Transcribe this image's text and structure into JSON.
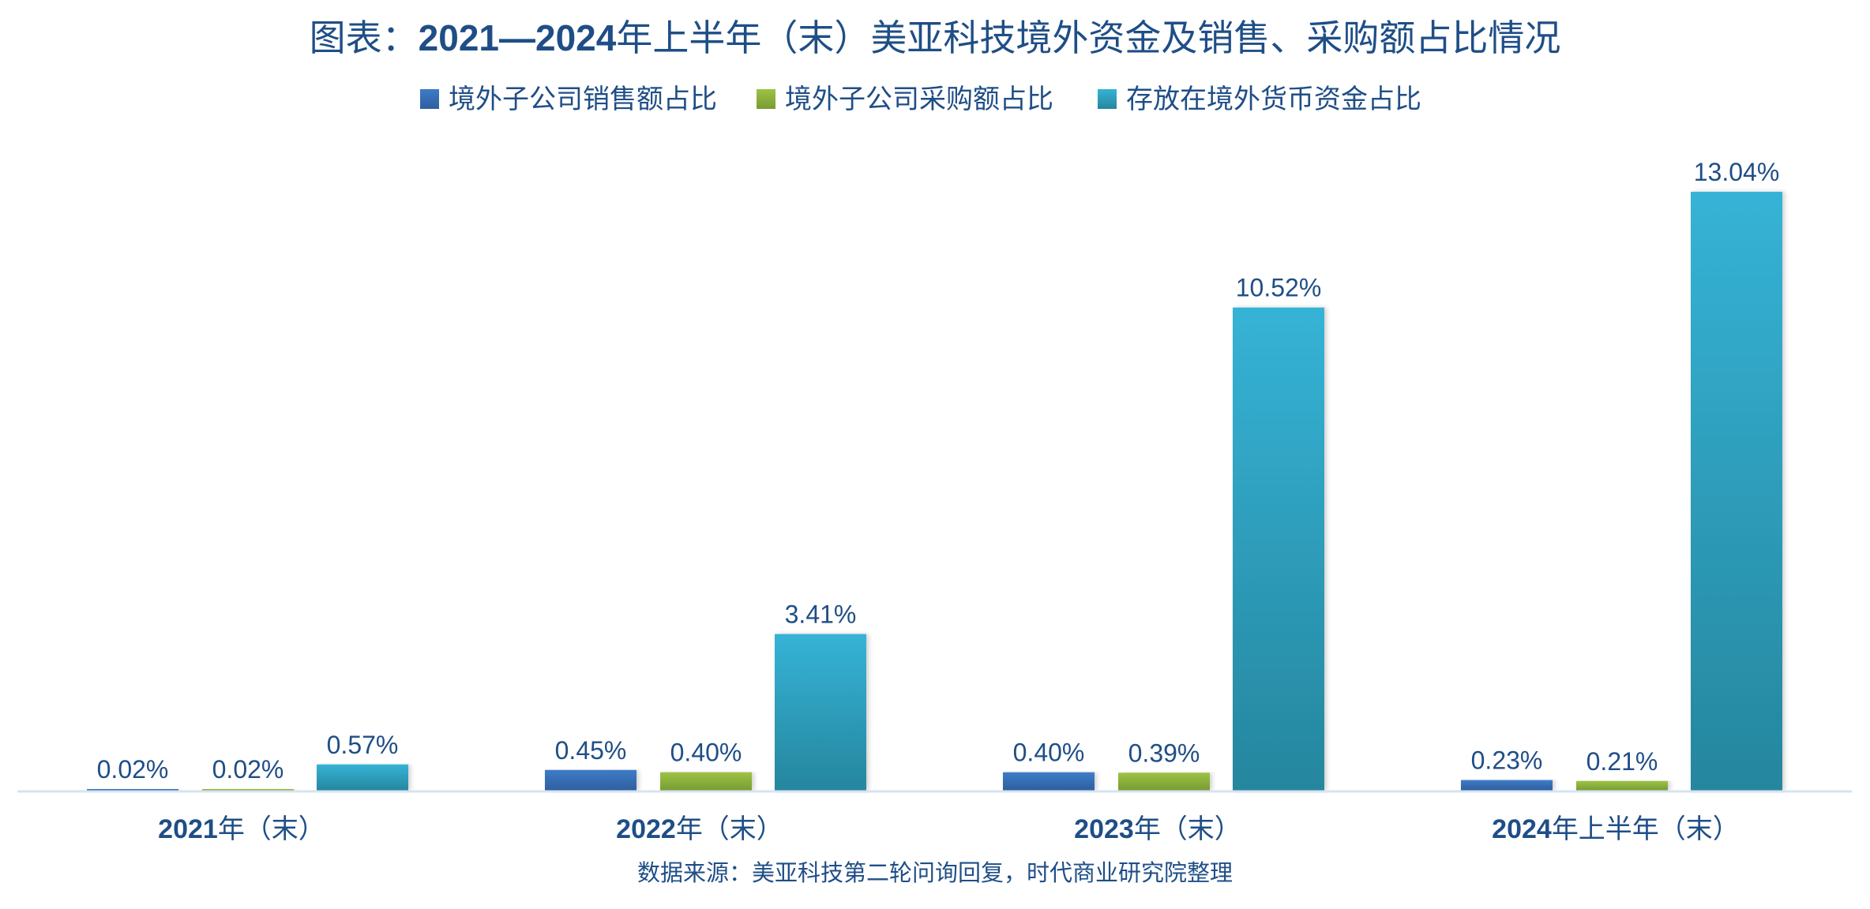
{
  "chart_data": {
    "type": "bar",
    "title_prefix": "图表：",
    "title_bold": "2021—2024",
    "title_suffix": "年上半年（末）美亚科技境外资金及销售、采购额占比情况",
    "categories": [
      {
        "bold": "2021",
        "rest": "年（末）"
      },
      {
        "bold": "2022",
        "rest": "年（末）"
      },
      {
        "bold": "2023",
        "rest": "年（末）"
      },
      {
        "bold": "2024",
        "rest": "年上半年（末）"
      }
    ],
    "series": [
      {
        "name": "境外子公司销售额占比",
        "color_top": "#3D7CC9",
        "color_bottom": "#2F5E9E",
        "values": [
          0.02,
          0.45,
          0.4,
          0.23
        ],
        "labels": [
          "0.02%",
          "0.45%",
          "0.40%",
          "0.23%"
        ]
      },
      {
        "name": "境外子公司采购额占比",
        "color_top": "#9DC344",
        "color_bottom": "#789B33",
        "values": [
          0.02,
          0.4,
          0.39,
          0.21
        ],
        "labels": [
          "0.02%",
          "0.40%",
          "0.39%",
          "0.21%"
        ]
      },
      {
        "name": "存放在境外货币资金占比",
        "color_top": "#35B3D6",
        "color_bottom": "#26869E",
        "values": [
          0.57,
          3.41,
          10.52,
          13.04
        ],
        "labels": [
          "0.57%",
          "3.41%",
          "10.52%",
          "13.04%"
        ]
      }
    ],
    "xlabel": "",
    "ylabel": "",
    "unit": "%",
    "ylim": [
      0,
      13.5
    ],
    "grid": false,
    "legend_position": "top-center",
    "axis_color": "#D6E3F1",
    "text_color": "#1F4E86",
    "source": "数据来源：美亚科技第二轮问询回复，时代商业研究院整理"
  }
}
